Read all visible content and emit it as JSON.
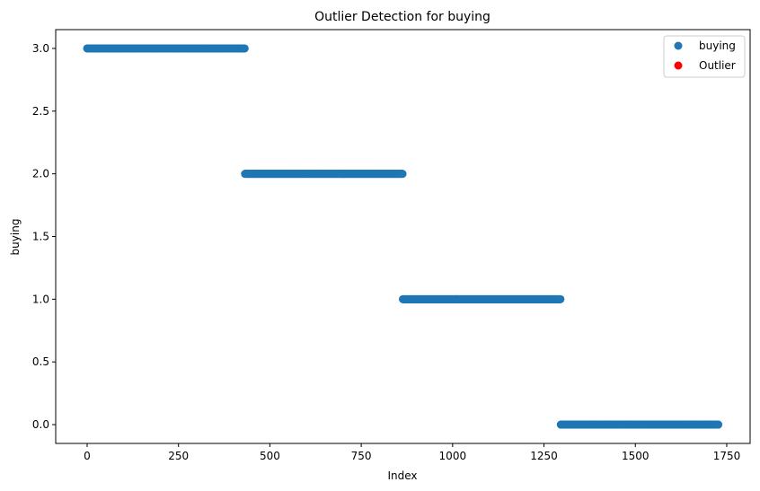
{
  "chart_data": {
    "type": "scatter",
    "title": "Outlier Detection for buying",
    "xlabel": "Index",
    "ylabel": "buying",
    "xlim": [
      -86,
      1814
    ],
    "ylim": [
      -0.15,
      3.15
    ],
    "xticks": [
      0,
      250,
      500,
      750,
      1000,
      1250,
      1500,
      1750
    ],
    "xtick_labels": [
      "0",
      "250",
      "500",
      "750",
      "1000",
      "1250",
      "1500",
      "1750"
    ],
    "yticks": [
      0.0,
      0.5,
      1.0,
      1.5,
      2.0,
      2.5,
      3.0
    ],
    "ytick_labels": [
      "0.0",
      "0.5",
      "1.0",
      "1.5",
      "2.0",
      "2.5",
      "3.0"
    ],
    "grid": false,
    "legend_position": "top-right",
    "series": [
      {
        "name": "buying",
        "color": "#1f77b4",
        "segments": [
          {
            "x_start": 0,
            "x_end": 431,
            "y": 3.0
          },
          {
            "x_start": 432,
            "x_end": 863,
            "y": 2.0
          },
          {
            "x_start": 864,
            "x_end": 1295,
            "y": 1.0
          },
          {
            "x_start": 1296,
            "x_end": 1727,
            "y": 0.0
          }
        ]
      },
      {
        "name": "Outlier",
        "color": "#ff0000",
        "segments": []
      }
    ]
  }
}
